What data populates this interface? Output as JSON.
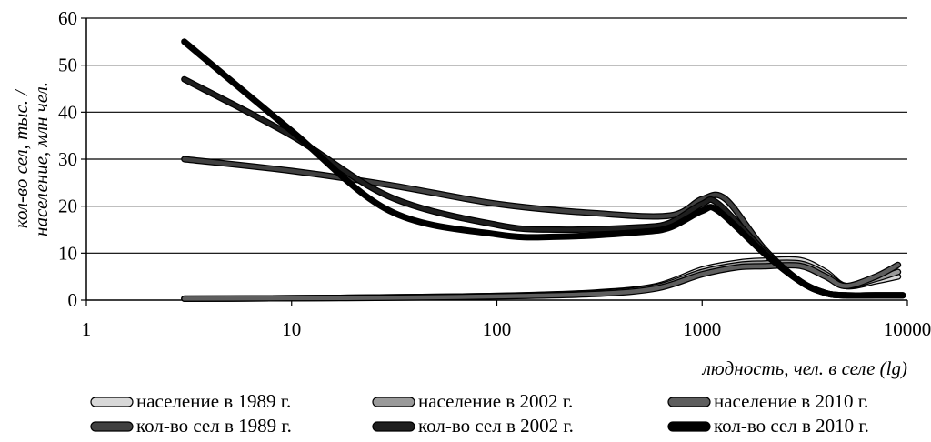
{
  "chart_data": {
    "type": "line",
    "x_scale": "log",
    "xlim": [
      1,
      10000
    ],
    "ylim": [
      0,
      60
    ],
    "x_ticks": [
      "1",
      "10",
      "100",
      "1000",
      "10000"
    ],
    "y_ticks": [
      "0",
      "10",
      "20",
      "30",
      "40",
      "50",
      "60"
    ],
    "xlabel": "людность, чел. в селе (lg)",
    "ylabel_lines": [
      "кол-во сел, тыс. /",
      "население, млн чел."
    ],
    "grid": "horizontal",
    "legend_position": "bottom",
    "series": [
      {
        "name": "население в 1989 г.",
        "color": "#d8d8d8",
        "x": [
          3,
          10,
          30,
          100,
          300,
          600,
          1000,
          1500,
          2000,
          3000,
          4000,
          5000,
          7000,
          9000
        ],
        "y": [
          0.3,
          0.4,
          0.6,
          0.9,
          1.6,
          3.0,
          6.5,
          8.0,
          8.4,
          8.5,
          6.0,
          3.0,
          4.0,
          5.0
        ]
      },
      {
        "name": "население в 2002 г.",
        "color": "#9a9a9a",
        "x": [
          3,
          10,
          30,
          100,
          300,
          600,
          1000,
          1500,
          2000,
          3000,
          4000,
          5000,
          7000,
          9000
        ],
        "y": [
          0.3,
          0.4,
          0.6,
          0.9,
          1.5,
          2.8,
          6.0,
          7.5,
          7.8,
          7.8,
          5.5,
          3.0,
          4.5,
          6.0
        ]
      },
      {
        "name": "население в 2010 г.",
        "color": "#5e5e5e",
        "x": [
          3,
          10,
          30,
          100,
          300,
          600,
          1000,
          1500,
          2000,
          3000,
          4000,
          5000,
          7000,
          9000
        ],
        "y": [
          0.3,
          0.4,
          0.5,
          0.8,
          1.3,
          2.5,
          5.5,
          7.0,
          7.2,
          7.3,
          5.0,
          3.0,
          5.0,
          7.5
        ]
      },
      {
        "name": "кол-во сел в 1989 г.",
        "color": "#404040",
        "x": [
          3,
          10,
          30,
          100,
          300,
          700,
          1000,
          1300,
          2000,
          3000,
          4000,
          5000,
          7000,
          9500
        ],
        "y": [
          30,
          27.5,
          24.5,
          20.5,
          18.5,
          18.0,
          21.5,
          21.5,
          11.0,
          4.0,
          1.5,
          1.0,
          1.0,
          1.0
        ]
      },
      {
        "name": "кол-во сел в 2002 г.",
        "color": "#1e1e1e",
        "x": [
          3,
          10,
          30,
          100,
          200,
          500,
          700,
          1000,
          1200,
          2000,
          3000,
          4000,
          5000,
          7000,
          9500
        ],
        "y": [
          47,
          35,
          22,
          16,
          15,
          15.5,
          16.5,
          20.5,
          20.5,
          10.5,
          4.0,
          1.5,
          1.0,
          1.0,
          1.0
        ]
      },
      {
        "name": "кол-во сел в 2010 г.",
        "color": "#000000",
        "x": [
          3,
          10,
          30,
          100,
          200,
          500,
          700,
          1000,
          1200,
          2000,
          3000,
          4000,
          5000,
          7000,
          9500
        ],
        "y": [
          55,
          36,
          19,
          14,
          13.5,
          14.5,
          15.5,
          19.0,
          19.0,
          10.0,
          4.0,
          1.5,
          1.0,
          1.0,
          1.0
        ]
      }
    ]
  }
}
